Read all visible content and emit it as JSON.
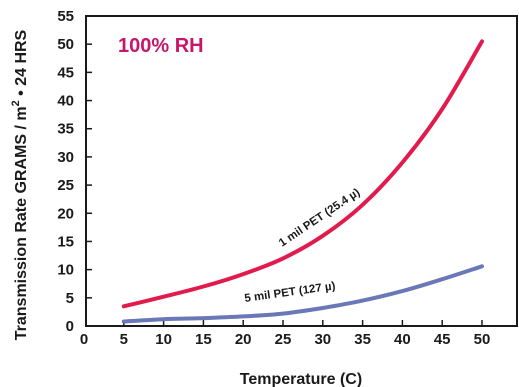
{
  "chart_data": {
    "type": "line",
    "title": "",
    "annotation": "100% RH",
    "annotation_color": "#c8176a",
    "xlabel": "Temperature (C)",
    "ylabel_main": "Transmission Rate GRAMS / m",
    "ylabel_sup": "2",
    "ylabel_tail": " • 24 HRS",
    "xlim": [
      0,
      55
    ],
    "ylim": [
      0,
      55
    ],
    "xticks": [
      "0",
      "5",
      "10",
      "15",
      "20",
      "25",
      "30",
      "35",
      "40",
      "45",
      "50"
    ],
    "yticks": [
      "0",
      "5",
      "10",
      "15",
      "20",
      "25",
      "30",
      "35",
      "40",
      "45",
      "50",
      "55"
    ],
    "grid": false,
    "series": [
      {
        "name": "1 mil PET (25.4 µ)",
        "color": "#e21b4d",
        "x": [
          5,
          10,
          15,
          20,
          25,
          30,
          35,
          40,
          45,
          50
        ],
        "y": [
          3.5,
          5.2,
          7.0,
          9.2,
          12.0,
          16.0,
          21.5,
          29.0,
          38.5,
          50.5
        ]
      },
      {
        "name": "5 mil PET (127 µ)",
        "color": "#6a78b8",
        "x": [
          5,
          10,
          15,
          20,
          25,
          30,
          35,
          40,
          45,
          50
        ],
        "y": [
          0.8,
          1.2,
          1.4,
          1.7,
          2.2,
          3.2,
          4.5,
          6.2,
          8.3,
          10.6
        ]
      }
    ]
  }
}
